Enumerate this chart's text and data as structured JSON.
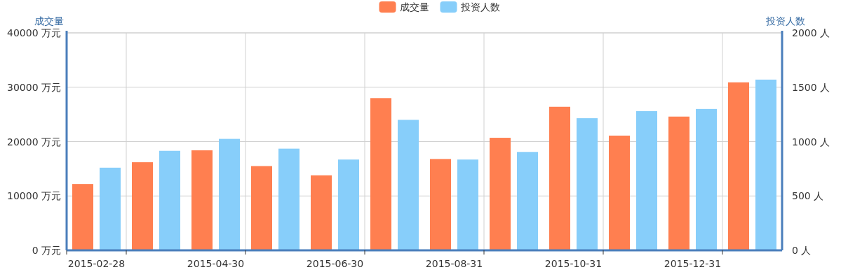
{
  "chart_data": {
    "type": "bar",
    "ylabel": "成交量",
    "y2label": "投资人数",
    "categories": [
      "2015-02-28",
      null,
      "2015-04-30",
      null,
      "2015-06-30",
      null,
      "2015-08-31",
      null,
      "2015-10-31",
      null,
      "2015-12-31",
      null
    ],
    "series": [
      {
        "name": "成交量",
        "color": "#ff7f50",
        "values": [
          12200,
          16200,
          18400,
          15500,
          13800,
          28000,
          16800,
          20700,
          26400,
          21100,
          24600,
          30900
        ]
      },
      {
        "name": "投资人数",
        "color": "#87cefa",
        "axis": "y2",
        "values": [
          760,
          915,
          1025,
          935,
          835,
          1200,
          835,
          905,
          1215,
          1280,
          1300,
          1570
        ]
      }
    ],
    "ylim": [
      0,
      40000
    ],
    "yticks": [
      {
        "value": 0,
        "label": "0 万元"
      },
      {
        "value": 10000,
        "label": "10000 万元"
      },
      {
        "value": 20000,
        "label": "20000 万元"
      },
      {
        "value": 30000,
        "label": "30000 万元"
      },
      {
        "value": 40000,
        "label": "40000 万元"
      }
    ],
    "y2lim": [
      0,
      2000
    ],
    "y2ticks": [
      {
        "value": 0,
        "label": "0 人"
      },
      {
        "value": 500,
        "label": "500 人"
      },
      {
        "value": 1000,
        "label": "1000 人"
      },
      {
        "value": 1500,
        "label": "1500 人"
      },
      {
        "value": 2000,
        "label": "2000 人"
      }
    ],
    "grid": true,
    "legend": "top"
  }
}
